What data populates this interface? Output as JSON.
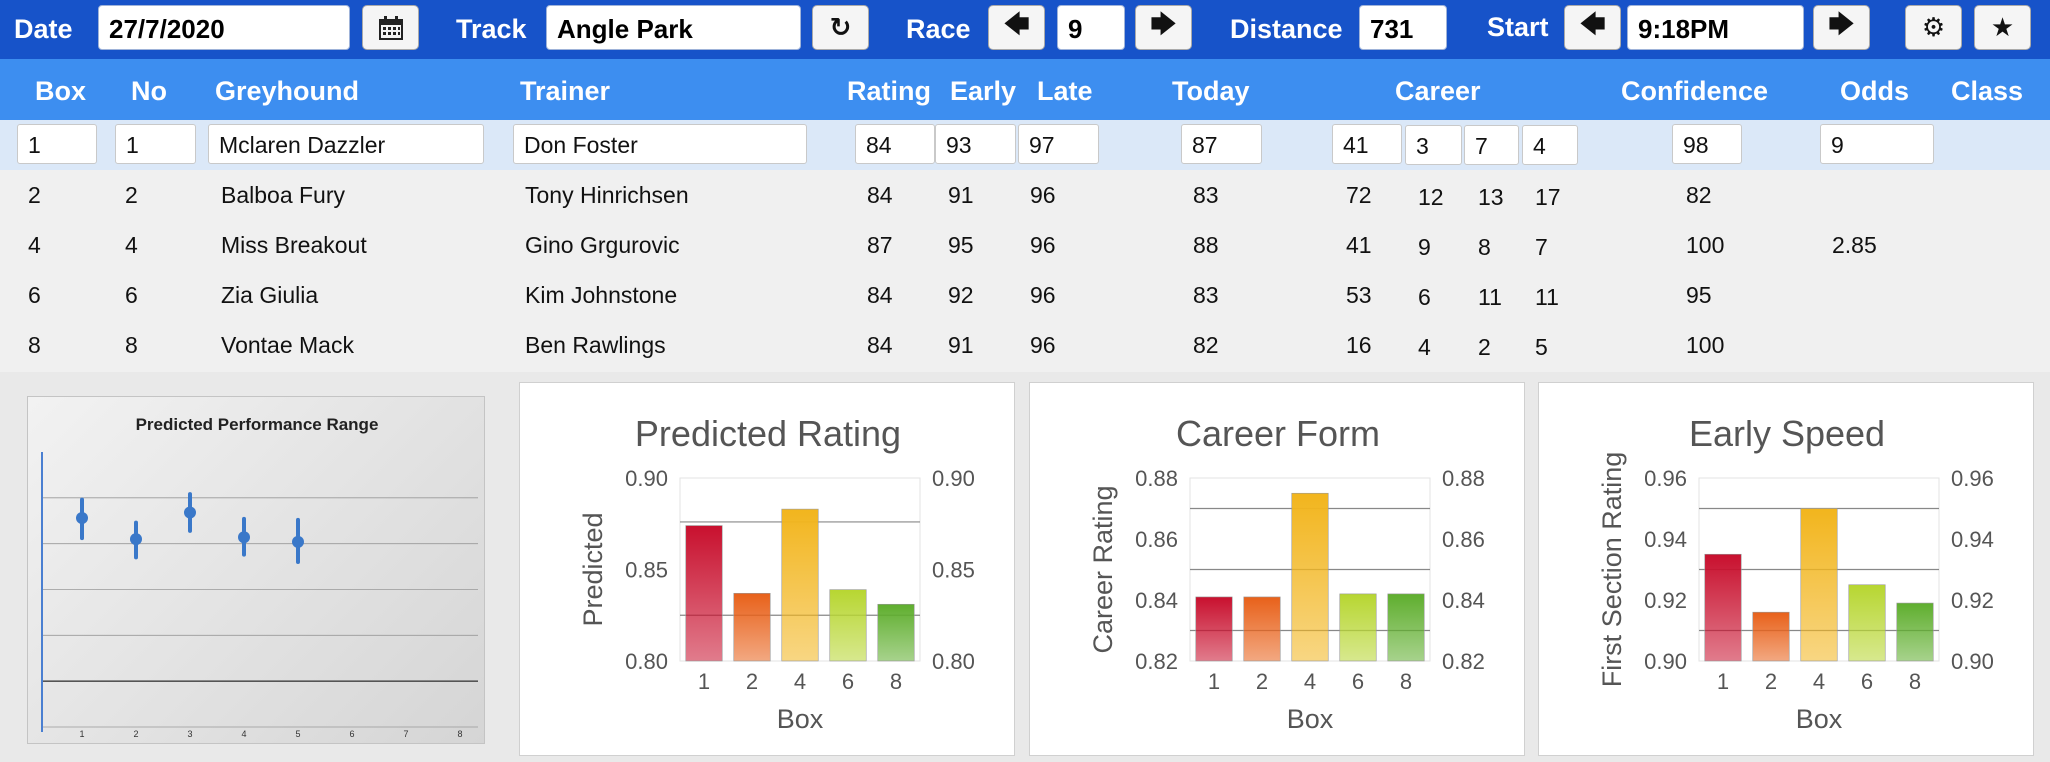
{
  "toolbar": {
    "date_label": "Date",
    "date_value": "27/7/2020",
    "track_label": "Track",
    "track_value": "Angle Park",
    "race_label": "Race",
    "race_value": "9",
    "distance_label": "Distance",
    "distance_value": "731",
    "start_label": "Start",
    "start_value": "9:18PM",
    "icons": {
      "calendar": "calendar-icon",
      "refresh": "refresh-icon",
      "prev": "arrow-left-icon",
      "next": "arrow-right-icon",
      "settings": "gear-icon",
      "favorite": "star-icon"
    },
    "glyphs": {
      "refresh": "↻",
      "left": "🡄",
      "right": "🡆",
      "gear": "⚙",
      "star": "★"
    }
  },
  "columns": {
    "box": "Box",
    "no": "No",
    "greyhound": "Greyhound",
    "trainer": "Trainer",
    "rating": "Rating",
    "early": "Early",
    "late": "Late",
    "today": "Today",
    "career": "Career",
    "confidence": "Confidence",
    "odds": "Odds",
    "class": "Class"
  },
  "rows": [
    {
      "box": "1",
      "no": "1",
      "name": "Mclaren Dazzler",
      "trainer": "Don Foster",
      "rating": "84",
      "early": "93",
      "late": "97",
      "today": "87",
      "c1": "41",
      "c2": "3",
      "c3": "7",
      "c4": "4",
      "confidence": "98",
      "odds": "9"
    },
    {
      "box": "2",
      "no": "2",
      "name": "Balboa Fury",
      "trainer": "Tony Hinrichsen",
      "rating": "84",
      "early": "91",
      "late": "96",
      "today": "83",
      "c1": "72",
      "c2": "12",
      "c3": "13",
      "c4": "17",
      "confidence": "82",
      "odds": ""
    },
    {
      "box": "4",
      "no": "4",
      "name": "Miss Breakout",
      "trainer": "Gino Grgurovic",
      "rating": "87",
      "early": "95",
      "late": "96",
      "today": "88",
      "c1": "41",
      "c2": "9",
      "c3": "8",
      "c4": "7",
      "confidence": "100",
      "odds": "2.85"
    },
    {
      "box": "6",
      "no": "6",
      "name": "Zia Giulia",
      "trainer": "Kim Johnstone",
      "rating": "84",
      "early": "92",
      "late": "96",
      "today": "83",
      "c1": "53",
      "c2": "6",
      "c3": "11",
      "c4": "11",
      "confidence": "95",
      "odds": ""
    },
    {
      "box": "8",
      "no": "8",
      "name": "Vontae Mack",
      "trainer": "Ben Rawlings",
      "rating": "84",
      "early": "91",
      "late": "96",
      "today": "82",
      "c1": "16",
      "c2": "4",
      "c3": "2",
      "c4": "5",
      "confidence": "100",
      "odds": ""
    }
  ],
  "chart_data": [
    {
      "type": "scatter",
      "title": "Predicted Performance Range",
      "x": [
        1,
        2,
        3,
        4,
        5
      ],
      "y": [
        0.78,
        0.55,
        0.84,
        0.57,
        0.52
      ],
      "y_low": [
        0.56,
        0.35,
        0.64,
        0.38,
        0.3
      ],
      "y_high": [
        0.98,
        0.73,
        1.04,
        0.77,
        0.76
      ],
      "x_ticks": [
        "1",
        "2",
        "3",
        "4",
        "5",
        "6",
        "7",
        "8"
      ],
      "ylim": [
        -1.5,
        1.5
      ],
      "grid": true,
      "color": "#3a78c9"
    },
    {
      "type": "bar",
      "title": "Predicted Rating",
      "xlabel": "Box",
      "ylabel": "Predicted",
      "categories": [
        "1",
        "2",
        "4",
        "6",
        "8"
      ],
      "values": [
        0.874,
        0.837,
        0.883,
        0.839,
        0.831
      ],
      "ylim": [
        0.8,
        0.9
      ],
      "y_ticks": [
        "0.80",
        "0.85",
        "0.90"
      ],
      "gridlines": [
        0.825,
        0.876
      ],
      "colors": [
        "#c8102e",
        "#e8611a",
        "#f2b51d",
        "#b7d631",
        "#5fae2e"
      ]
    },
    {
      "type": "bar",
      "title": "Career Form",
      "xlabel": "Box",
      "ylabel": "Career Rating",
      "categories": [
        "1",
        "2",
        "4",
        "6",
        "8"
      ],
      "values": [
        0.841,
        0.841,
        0.875,
        0.842,
        0.842
      ],
      "ylim": [
        0.82,
        0.88
      ],
      "y_ticks": [
        "0.82",
        "0.84",
        "0.86",
        "0.88"
      ],
      "gridlines": [
        0.83,
        0.85,
        0.87
      ],
      "colors": [
        "#c8102e",
        "#e8611a",
        "#f2b51d",
        "#b7d631",
        "#5fae2e"
      ]
    },
    {
      "type": "bar",
      "title": "Early Speed",
      "xlabel": "Box",
      "ylabel": "First Section Rating",
      "categories": [
        "1",
        "2",
        "4",
        "6",
        "8"
      ],
      "values": [
        0.935,
        0.916,
        0.95,
        0.925,
        0.919
      ],
      "ylim": [
        0.9,
        0.96
      ],
      "y_ticks": [
        "0.90",
        "0.92",
        "0.94",
        "0.96"
      ],
      "gridlines": [
        0.91,
        0.93,
        0.95
      ],
      "colors": [
        "#c8102e",
        "#e8611a",
        "#f2b51d",
        "#b7d631",
        "#5fae2e"
      ]
    }
  ]
}
